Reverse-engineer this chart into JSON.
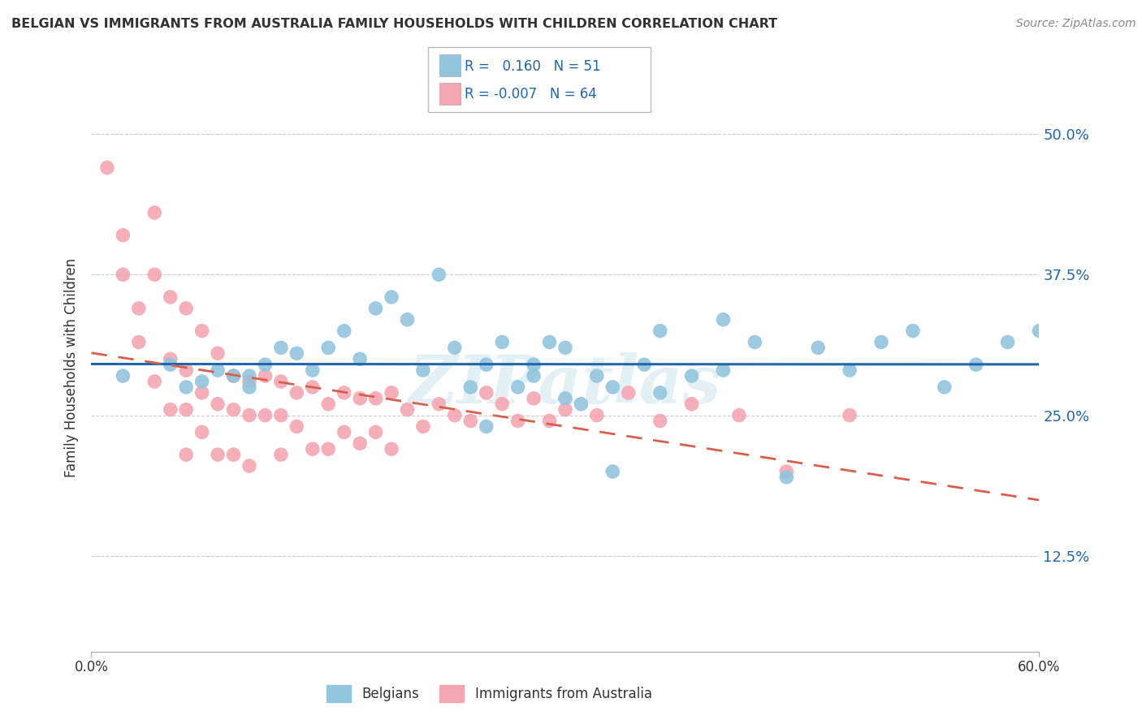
{
  "title": "BELGIAN VS IMMIGRANTS FROM AUSTRALIA FAMILY HOUSEHOLDS WITH CHILDREN CORRELATION CHART",
  "source": "Source: ZipAtlas.com",
  "ylabel": "Family Households with Children",
  "yticks": [
    "12.5%",
    "25.0%",
    "37.5%",
    "50.0%"
  ],
  "ytick_vals": [
    0.125,
    0.25,
    0.375,
    0.5
  ],
  "xlim": [
    0.0,
    0.6
  ],
  "ylim": [
    0.04,
    0.545
  ],
  "blue_color": "#92c5de",
  "pink_color": "#f4a6b2",
  "blue_line_color": "#2166ac",
  "pink_line_color": "#d6604d",
  "watermark": "ZIPatlas",
  "belgians_x": [
    0.02,
    0.05,
    0.06,
    0.07,
    0.08,
    0.09,
    0.1,
    0.1,
    0.11,
    0.12,
    0.13,
    0.14,
    0.15,
    0.16,
    0.17,
    0.18,
    0.19,
    0.2,
    0.21,
    0.22,
    0.23,
    0.24,
    0.25,
    0.26,
    0.27,
    0.28,
    0.29,
    0.3,
    0.31,
    0.32,
    0.33,
    0.35,
    0.36,
    0.38,
    0.4,
    0.42,
    0.44,
    0.46,
    0.48,
    0.5,
    0.52,
    0.54,
    0.56,
    0.58,
    0.6,
    0.25,
    0.28,
    0.3,
    0.33,
    0.36,
    0.4
  ],
  "belgians_y": [
    0.285,
    0.295,
    0.275,
    0.28,
    0.29,
    0.285,
    0.275,
    0.285,
    0.295,
    0.31,
    0.305,
    0.29,
    0.31,
    0.325,
    0.3,
    0.345,
    0.355,
    0.335,
    0.29,
    0.375,
    0.31,
    0.275,
    0.295,
    0.315,
    0.275,
    0.295,
    0.315,
    0.31,
    0.26,
    0.285,
    0.275,
    0.295,
    0.27,
    0.285,
    0.29,
    0.315,
    0.195,
    0.31,
    0.29,
    0.315,
    0.325,
    0.275,
    0.295,
    0.315,
    0.325,
    0.24,
    0.285,
    0.265,
    0.2,
    0.325,
    0.335
  ],
  "australia_x": [
    0.01,
    0.02,
    0.02,
    0.03,
    0.03,
    0.04,
    0.04,
    0.04,
    0.05,
    0.05,
    0.05,
    0.06,
    0.06,
    0.06,
    0.06,
    0.07,
    0.07,
    0.07,
    0.08,
    0.08,
    0.08,
    0.09,
    0.09,
    0.09,
    0.1,
    0.1,
    0.1,
    0.11,
    0.11,
    0.12,
    0.12,
    0.12,
    0.13,
    0.13,
    0.14,
    0.14,
    0.15,
    0.15,
    0.16,
    0.16,
    0.17,
    0.17,
    0.18,
    0.18,
    0.19,
    0.19,
    0.2,
    0.21,
    0.22,
    0.23,
    0.24,
    0.25,
    0.26,
    0.27,
    0.28,
    0.29,
    0.3,
    0.32,
    0.34,
    0.36,
    0.38,
    0.41,
    0.44,
    0.48
  ],
  "australia_y": [
    0.47,
    0.41,
    0.375,
    0.345,
    0.315,
    0.43,
    0.375,
    0.28,
    0.355,
    0.3,
    0.255,
    0.345,
    0.29,
    0.255,
    0.215,
    0.325,
    0.27,
    0.235,
    0.305,
    0.26,
    0.215,
    0.285,
    0.255,
    0.215,
    0.28,
    0.25,
    0.205,
    0.285,
    0.25,
    0.28,
    0.25,
    0.215,
    0.27,
    0.24,
    0.275,
    0.22,
    0.26,
    0.22,
    0.27,
    0.235,
    0.265,
    0.225,
    0.265,
    0.235,
    0.27,
    0.22,
    0.255,
    0.24,
    0.26,
    0.25,
    0.245,
    0.27,
    0.26,
    0.245,
    0.265,
    0.245,
    0.255,
    0.25,
    0.27,
    0.245,
    0.26,
    0.25,
    0.2,
    0.25
  ]
}
